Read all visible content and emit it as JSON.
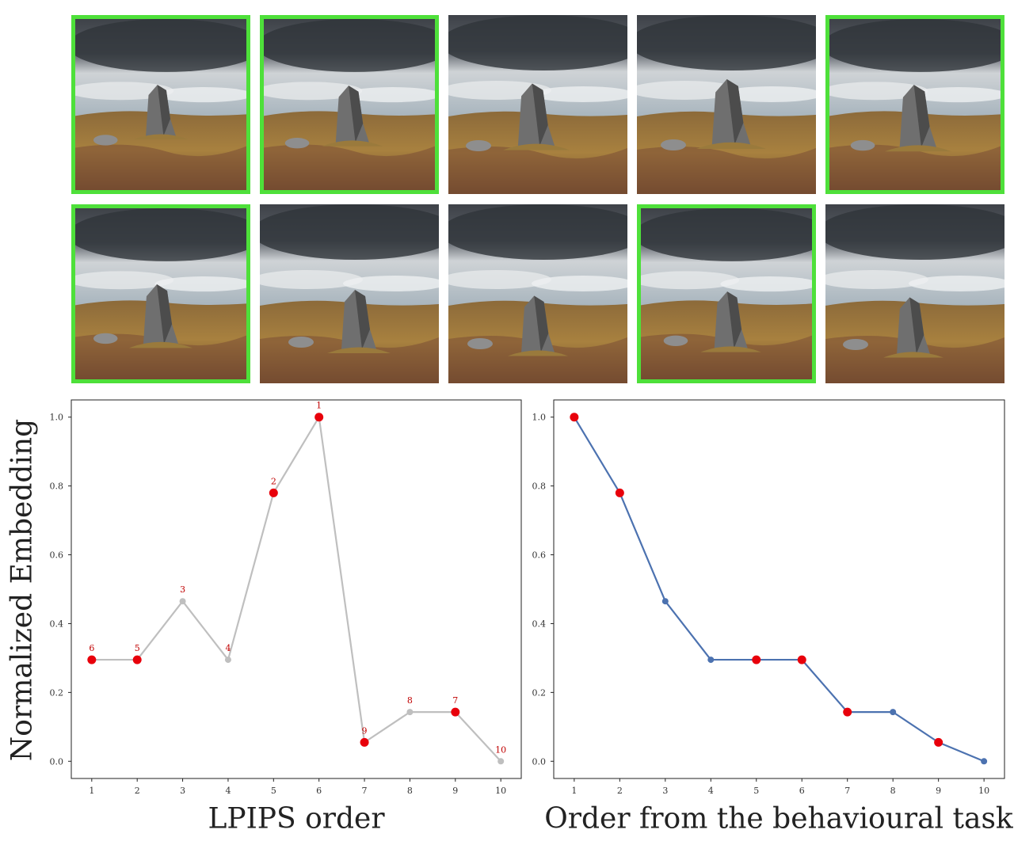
{
  "images": {
    "top_row_highlighted": [
      true,
      true,
      false,
      false,
      true
    ],
    "bottom_row_highlighted": [
      true,
      false,
      false,
      true,
      false
    ],
    "highlight_color": "#4ee03a"
  },
  "labels": {
    "y_axis": "Normalized Embedding",
    "left_x_axis": "LPIPS order",
    "right_x_axis": "Order from the behavioural task"
  },
  "chart_data": [
    {
      "type": "line",
      "x": [
        1,
        2,
        3,
        4,
        5,
        6,
        7,
        8,
        9,
        10
      ],
      "y": [
        0.295,
        0.295,
        0.465,
        0.295,
        0.78,
        1.0,
        0.055,
        0.143,
        0.143,
        0.0
      ],
      "point_labels": [
        "6",
        "5",
        "3",
        "4",
        "2",
        "1",
        "9",
        "8",
        "7",
        "10"
      ],
      "highlighted": [
        true,
        true,
        false,
        false,
        true,
        true,
        true,
        false,
        true,
        false
      ],
      "line_color": "#bfbfbf",
      "point_color": "#bfbfbf",
      "highlight_color": "#e8000b",
      "label_color": "#c00000",
      "xlabel": "LPIPS order",
      "ylabel": "Normalized Embedding",
      "xticks": [
        "1",
        "2",
        "3",
        "4",
        "5",
        "6",
        "7",
        "8",
        "9",
        "10"
      ],
      "yticks": [
        "0.0",
        "0.2",
        "0.4",
        "0.6",
        "0.8",
        "1.0"
      ],
      "xlim": [
        0.55,
        10.45
      ],
      "ylim": [
        -0.05,
        1.05
      ],
      "grid": false
    },
    {
      "type": "line",
      "x": [
        1,
        2,
        3,
        4,
        5,
        6,
        7,
        8,
        9,
        10
      ],
      "y": [
        1.0,
        0.78,
        0.465,
        0.295,
        0.295,
        0.295,
        0.143,
        0.143,
        0.055,
        0.0
      ],
      "highlighted": [
        true,
        true,
        false,
        false,
        true,
        true,
        true,
        false,
        true,
        false
      ],
      "line_color": "#4c72b0",
      "point_color": "#4c72b0",
      "highlight_color": "#e8000b",
      "xlabel": "Order from the behavioural task",
      "ylabel": "",
      "xticks": [
        "1",
        "2",
        "3",
        "4",
        "5",
        "6",
        "7",
        "8",
        "9",
        "10"
      ],
      "yticks": [
        "0.0",
        "0.2",
        "0.4",
        "0.6",
        "0.8",
        "1.0"
      ],
      "xlim": [
        0.55,
        10.45
      ],
      "ylim": [
        -0.05,
        1.05
      ],
      "grid": false
    }
  ]
}
